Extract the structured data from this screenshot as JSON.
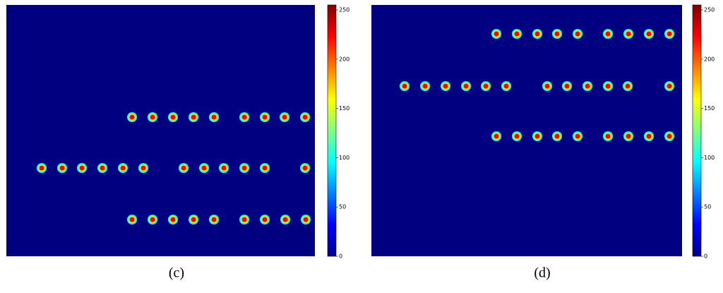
{
  "chart_data": [
    {
      "type": "heatmap",
      "label": "(c)",
      "colormap": "jet",
      "ylim": [
        0,
        255
      ],
      "yticks": [
        0,
        50,
        100,
        150,
        200,
        250
      ]
    },
    {
      "type": "heatmap",
      "label": "(d)",
      "colormap": "jet",
      "ylim": [
        0,
        255
      ],
      "yticks": [
        0,
        50,
        100,
        150,
        200,
        250
      ]
    }
  ]
}
